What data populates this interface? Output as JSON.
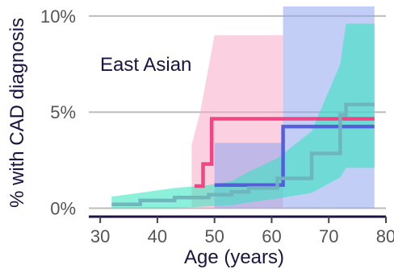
{
  "chart_data": {
    "type": "line",
    "annotation": "East Asian",
    "xlabel": "Age (years)",
    "ylabel": "% with CAD diagnosis",
    "xlim": [
      28,
      80
    ],
    "ylim": [
      -0.4,
      10.5
    ],
    "x_ticks": [
      30,
      40,
      50,
      60,
      70,
      80
    ],
    "y_ticks": [
      {
        "value": 0,
        "label": "0%"
      },
      {
        "value": 5,
        "label": "5%"
      },
      {
        "value": 10,
        "label": "10%"
      }
    ],
    "grid": {
      "horizontal": true,
      "vertical": false
    },
    "series": [
      {
        "color": "#ef3f7e",
        "band_color": "#f7a9c6",
        "line": [
          [
            46.5,
            1.15
          ],
          [
            48,
            1.15
          ],
          [
            48,
            2.3
          ],
          [
            49.5,
            2.3
          ],
          [
            49.5,
            4.65
          ],
          [
            78,
            4.65
          ]
        ],
        "band": [
          [
            46,
            0.0,
            3.3
          ],
          [
            47.5,
            0.0,
            5.0
          ],
          [
            50,
            0.0,
            9.0
          ],
          [
            62,
            0.0,
            9.0
          ],
          [
            62,
            0.0,
            0.0
          ],
          [
            78,
            0.0,
            0.0
          ]
        ]
      },
      {
        "color": "#4f5ad8",
        "band_color": "#8fa5ef",
        "line": [
          [
            50,
            1.2
          ],
          [
            62,
            1.2
          ],
          [
            62,
            4.25
          ],
          [
            78,
            4.25
          ]
        ],
        "band": [
          [
            50,
            0.0,
            3.4
          ],
          [
            62,
            0.0,
            3.4
          ],
          [
            62,
            0.0,
            10.5
          ],
          [
            78,
            0.0,
            10.5
          ]
        ]
      },
      {
        "color": "#6fb3bc",
        "band_color": "#2ee6bc",
        "line": [
          [
            32,
            0.2
          ],
          [
            37,
            0.2
          ],
          [
            37,
            0.4
          ],
          [
            43,
            0.4
          ],
          [
            43,
            0.55
          ],
          [
            49,
            0.55
          ],
          [
            49,
            0.7
          ],
          [
            53,
            0.7
          ],
          [
            53,
            0.85
          ],
          [
            56,
            0.85
          ],
          [
            56,
            1.05
          ],
          [
            61,
            1.05
          ],
          [
            61,
            1.55
          ],
          [
            67,
            1.55
          ],
          [
            67,
            2.85
          ],
          [
            72,
            2.85
          ],
          [
            72,
            4.85
          ],
          [
            73,
            4.85
          ],
          [
            73,
            5.4
          ],
          [
            78,
            5.4
          ]
        ],
        "band": [
          [
            32,
            0.0,
            0.6
          ],
          [
            37,
            0.0,
            0.8
          ],
          [
            43,
            0.0,
            1.05
          ],
          [
            49,
            0.1,
            1.2
          ],
          [
            53,
            0.15,
            1.4
          ],
          [
            56,
            0.3,
            1.9
          ],
          [
            61,
            0.5,
            2.6
          ],
          [
            67,
            0.8,
            4.0
          ],
          [
            72,
            1.6,
            7.5
          ],
          [
            73,
            2.1,
            9.6
          ],
          [
            78,
            2.1,
            9.6
          ]
        ]
      }
    ]
  }
}
